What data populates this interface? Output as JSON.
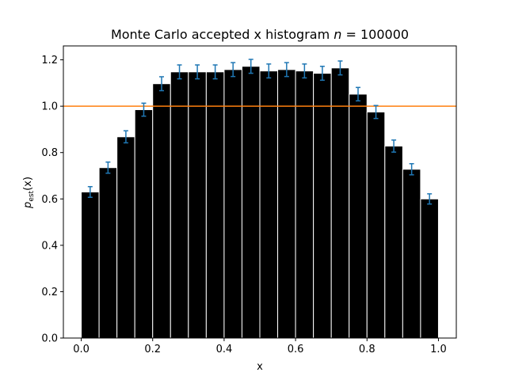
{
  "chart_data": {
    "type": "bar",
    "title_prefix": "Monte Carlo accepted x histogram ",
    "title_var": "n",
    "title_eq": " = 100000",
    "xlabel": "x",
    "ylabel_main": "p",
    "ylabel_sub": "est",
    "ylabel_arg": "(x)",
    "xlim": [
      -0.05,
      1.05
    ],
    "ylim": [
      0.0,
      1.26
    ],
    "xticks": [
      0.0,
      0.2,
      0.4,
      0.6,
      0.8,
      1.0
    ],
    "xtick_labels": [
      "0.0",
      "0.2",
      "0.4",
      "0.6",
      "0.8",
      "1.0"
    ],
    "yticks": [
      0.0,
      0.2,
      0.4,
      0.6,
      0.8,
      1.0,
      1.2
    ],
    "ytick_labels": [
      "0.0",
      "0.2",
      "0.4",
      "0.6",
      "0.8",
      "1.0",
      "1.2"
    ],
    "bin_width": 0.05,
    "bin_centers": [
      0.025,
      0.075,
      0.125,
      0.175,
      0.225,
      0.275,
      0.325,
      0.375,
      0.425,
      0.475,
      0.525,
      0.575,
      0.625,
      0.675,
      0.725,
      0.775,
      0.825,
      0.875,
      0.925,
      0.975
    ],
    "values": [
      0.63,
      0.735,
      0.868,
      0.985,
      1.097,
      1.148,
      1.148,
      1.148,
      1.158,
      1.172,
      1.152,
      1.158,
      1.152,
      1.142,
      1.165,
      1.052,
      0.975,
      0.828,
      0.728,
      0.6
    ],
    "errors": [
      0.023,
      0.024,
      0.026,
      0.028,
      0.03,
      0.03,
      0.03,
      0.03,
      0.03,
      0.03,
      0.03,
      0.03,
      0.03,
      0.03,
      0.03,
      0.029,
      0.028,
      0.026,
      0.024,
      0.022
    ],
    "reference_line": 1.0,
    "colors": {
      "bar": "#000000",
      "bar_edge": "#ffffff",
      "errorbar": "#1f77b4",
      "reference": "#ff7f0e",
      "axes": "#000000"
    },
    "grid": false
  }
}
